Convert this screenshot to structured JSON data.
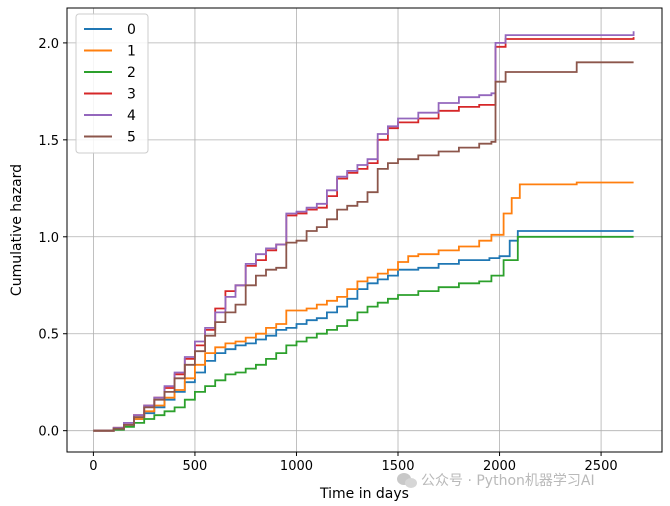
{
  "chart_data": {
    "type": "line",
    "title": "",
    "xlabel": "Time in days",
    "ylabel": "Cumulative hazard",
    "xlim": [
      -130,
      2800
    ],
    "ylim": [
      -0.11,
      2.18
    ],
    "xticks": [
      0,
      500,
      1000,
      1500,
      2000,
      2500
    ],
    "yticks": [
      0.0,
      0.5,
      1.0,
      1.5,
      2.0
    ],
    "xtick_labels": [
      "0",
      "500",
      "1000",
      "1500",
      "2000",
      "2500"
    ],
    "ytick_labels": [
      "0.0",
      "0.5",
      "1.0",
      "1.5",
      "2.0"
    ],
    "grid": true,
    "legend_position": "top-left",
    "step": true,
    "series": [
      {
        "name": "0",
        "color": "#1f77b4",
        "points": [
          [
            0,
            0
          ],
          [
            100,
            0.01
          ],
          [
            150,
            0.03
          ],
          [
            200,
            0.06
          ],
          [
            250,
            0.09
          ],
          [
            300,
            0.12
          ],
          [
            350,
            0.16
          ],
          [
            400,
            0.2
          ],
          [
            450,
            0.25
          ],
          [
            500,
            0.3
          ],
          [
            550,
            0.36
          ],
          [
            600,
            0.4
          ],
          [
            650,
            0.42
          ],
          [
            700,
            0.44
          ],
          [
            750,
            0.45
          ],
          [
            800,
            0.47
          ],
          [
            850,
            0.49
          ],
          [
            900,
            0.52
          ],
          [
            950,
            0.53
          ],
          [
            1000,
            0.55
          ],
          [
            1050,
            0.57
          ],
          [
            1100,
            0.58
          ],
          [
            1150,
            0.61
          ],
          [
            1200,
            0.64
          ],
          [
            1250,
            0.68
          ],
          [
            1300,
            0.73
          ],
          [
            1350,
            0.76
          ],
          [
            1400,
            0.78
          ],
          [
            1450,
            0.8
          ],
          [
            1500,
            0.83
          ],
          [
            1600,
            0.84
          ],
          [
            1700,
            0.86
          ],
          [
            1800,
            0.88
          ],
          [
            1950,
            0.89
          ],
          [
            2000,
            0.9
          ],
          [
            2050,
            0.98
          ],
          [
            2090,
            1.03
          ],
          [
            2660,
            1.03
          ]
        ]
      },
      {
        "name": "1",
        "color": "#ff7f0e",
        "points": [
          [
            0,
            0
          ],
          [
            100,
            0.01
          ],
          [
            150,
            0.03
          ],
          [
            200,
            0.06
          ],
          [
            250,
            0.1
          ],
          [
            300,
            0.13
          ],
          [
            350,
            0.17
          ],
          [
            400,
            0.21
          ],
          [
            450,
            0.27
          ],
          [
            500,
            0.34
          ],
          [
            550,
            0.4
          ],
          [
            600,
            0.43
          ],
          [
            650,
            0.45
          ],
          [
            700,
            0.46
          ],
          [
            750,
            0.48
          ],
          [
            800,
            0.5
          ],
          [
            850,
            0.53
          ],
          [
            900,
            0.55
          ],
          [
            950,
            0.62
          ],
          [
            1000,
            0.62
          ],
          [
            1050,
            0.63
          ],
          [
            1100,
            0.65
          ],
          [
            1150,
            0.67
          ],
          [
            1200,
            0.69
          ],
          [
            1250,
            0.73
          ],
          [
            1300,
            0.77
          ],
          [
            1350,
            0.79
          ],
          [
            1400,
            0.81
          ],
          [
            1450,
            0.83
          ],
          [
            1500,
            0.87
          ],
          [
            1550,
            0.9
          ],
          [
            1600,
            0.91
          ],
          [
            1700,
            0.93
          ],
          [
            1800,
            0.95
          ],
          [
            1900,
            0.98
          ],
          [
            1960,
            1.01
          ],
          [
            2020,
            1.12
          ],
          [
            2060,
            1.2
          ],
          [
            2100,
            1.27
          ],
          [
            2380,
            1.28
          ],
          [
            2660,
            1.28
          ]
        ]
      },
      {
        "name": "2",
        "color": "#2ca02c",
        "points": [
          [
            0,
            0
          ],
          [
            100,
            0.005
          ],
          [
            150,
            0.02
          ],
          [
            200,
            0.04
          ],
          [
            250,
            0.06
          ],
          [
            300,
            0.08
          ],
          [
            350,
            0.1
          ],
          [
            400,
            0.12
          ],
          [
            450,
            0.16
          ],
          [
            500,
            0.2
          ],
          [
            550,
            0.23
          ],
          [
            600,
            0.26
          ],
          [
            650,
            0.29
          ],
          [
            700,
            0.3
          ],
          [
            750,
            0.32
          ],
          [
            800,
            0.34
          ],
          [
            850,
            0.37
          ],
          [
            900,
            0.4
          ],
          [
            950,
            0.44
          ],
          [
            1000,
            0.46
          ],
          [
            1050,
            0.48
          ],
          [
            1100,
            0.5
          ],
          [
            1150,
            0.52
          ],
          [
            1200,
            0.54
          ],
          [
            1250,
            0.57
          ],
          [
            1300,
            0.61
          ],
          [
            1350,
            0.64
          ],
          [
            1400,
            0.66
          ],
          [
            1450,
            0.68
          ],
          [
            1500,
            0.7
          ],
          [
            1600,
            0.72
          ],
          [
            1700,
            0.74
          ],
          [
            1800,
            0.76
          ],
          [
            1900,
            0.77
          ],
          [
            1960,
            0.8
          ],
          [
            2020,
            0.88
          ],
          [
            2090,
            1.0
          ],
          [
            2660,
            1.0
          ]
        ]
      },
      {
        "name": "3",
        "color": "#d62728",
        "points": [
          [
            0,
            0
          ],
          [
            100,
            0.015
          ],
          [
            150,
            0.04
          ],
          [
            200,
            0.08
          ],
          [
            250,
            0.13
          ],
          [
            300,
            0.17
          ],
          [
            350,
            0.22
          ],
          [
            400,
            0.29
          ],
          [
            450,
            0.37
          ],
          [
            500,
            0.44
          ],
          [
            550,
            0.52
          ],
          [
            600,
            0.63
          ],
          [
            650,
            0.72
          ],
          [
            700,
            0.75
          ],
          [
            750,
            0.85
          ],
          [
            800,
            0.88
          ],
          [
            850,
            0.93
          ],
          [
            900,
            0.96
          ],
          [
            950,
            1.11
          ],
          [
            1000,
            1.12
          ],
          [
            1050,
            1.14
          ],
          [
            1100,
            1.15
          ],
          [
            1150,
            1.21
          ],
          [
            1200,
            1.3
          ],
          [
            1250,
            1.33
          ],
          [
            1300,
            1.35
          ],
          [
            1350,
            1.38
          ],
          [
            1400,
            1.5
          ],
          [
            1450,
            1.56
          ],
          [
            1500,
            1.59
          ],
          [
            1600,
            1.61
          ],
          [
            1700,
            1.65
          ],
          [
            1800,
            1.67
          ],
          [
            1900,
            1.68
          ],
          [
            1960,
            1.68
          ],
          [
            1980,
            1.98
          ],
          [
            2030,
            2.02
          ],
          [
            2660,
            2.03
          ]
        ]
      },
      {
        "name": "4",
        "color": "#9467bd",
        "points": [
          [
            0,
            0
          ],
          [
            100,
            0.015
          ],
          [
            150,
            0.04
          ],
          [
            200,
            0.08
          ],
          [
            250,
            0.13
          ],
          [
            300,
            0.17
          ],
          [
            350,
            0.23
          ],
          [
            400,
            0.3
          ],
          [
            450,
            0.38
          ],
          [
            500,
            0.46
          ],
          [
            550,
            0.53
          ],
          [
            600,
            0.61
          ],
          [
            650,
            0.69
          ],
          [
            700,
            0.75
          ],
          [
            750,
            0.86
          ],
          [
            800,
            0.91
          ],
          [
            850,
            0.94
          ],
          [
            900,
            0.96
          ],
          [
            950,
            1.12
          ],
          [
            1000,
            1.13
          ],
          [
            1050,
            1.15
          ],
          [
            1100,
            1.17
          ],
          [
            1150,
            1.24
          ],
          [
            1200,
            1.31
          ],
          [
            1250,
            1.34
          ],
          [
            1300,
            1.37
          ],
          [
            1350,
            1.4
          ],
          [
            1400,
            1.53
          ],
          [
            1450,
            1.57
          ],
          [
            1500,
            1.61
          ],
          [
            1600,
            1.64
          ],
          [
            1700,
            1.69
          ],
          [
            1800,
            1.72
          ],
          [
            1900,
            1.73
          ],
          [
            1960,
            1.74
          ],
          [
            1980,
            2.0
          ],
          [
            2030,
            2.04
          ],
          [
            2660,
            2.06
          ]
        ]
      },
      {
        "name": "5",
        "color": "#8c564b",
        "points": [
          [
            0,
            0
          ],
          [
            100,
            0.01
          ],
          [
            150,
            0.03
          ],
          [
            200,
            0.07
          ],
          [
            250,
            0.12
          ],
          [
            300,
            0.16
          ],
          [
            350,
            0.2
          ],
          [
            400,
            0.27
          ],
          [
            450,
            0.34
          ],
          [
            500,
            0.41
          ],
          [
            550,
            0.49
          ],
          [
            600,
            0.56
          ],
          [
            650,
            0.61
          ],
          [
            700,
            0.65
          ],
          [
            750,
            0.75
          ],
          [
            800,
            0.8
          ],
          [
            850,
            0.83
          ],
          [
            900,
            0.84
          ],
          [
            950,
            0.97
          ],
          [
            1000,
            0.98
          ],
          [
            1050,
            1.03
          ],
          [
            1100,
            1.05
          ],
          [
            1150,
            1.09
          ],
          [
            1200,
            1.14
          ],
          [
            1250,
            1.16
          ],
          [
            1300,
            1.18
          ],
          [
            1350,
            1.23
          ],
          [
            1400,
            1.35
          ],
          [
            1450,
            1.38
          ],
          [
            1500,
            1.4
          ],
          [
            1600,
            1.42
          ],
          [
            1700,
            1.44
          ],
          [
            1800,
            1.46
          ],
          [
            1900,
            1.48
          ],
          [
            1960,
            1.49
          ],
          [
            1980,
            1.8
          ],
          [
            2030,
            1.85
          ],
          [
            2380,
            1.9
          ],
          [
            2660,
            1.9
          ]
        ]
      }
    ]
  },
  "watermark": {
    "icon": "wechat-icon",
    "text": "公众号 · Python机器学习AI"
  }
}
